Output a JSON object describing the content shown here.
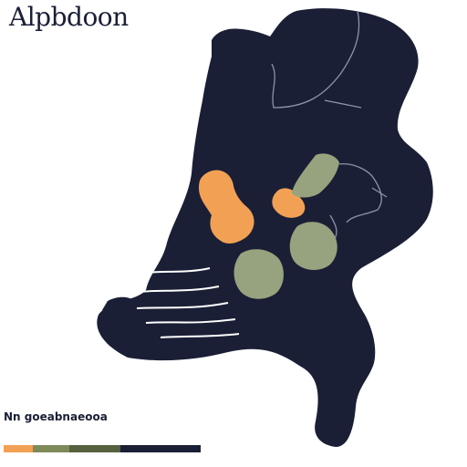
{
  "title": "Alpbdoon",
  "legend": {
    "label": "Nn goeabnaeooa",
    "segments": [
      {
        "color": "#f2a154"
      },
      {
        "color": "#7e8a5a"
      },
      {
        "color": "#56613f"
      },
      {
        "color": "#1a1f36"
      }
    ]
  },
  "colors": {
    "land": "#1a1f36",
    "orange": "#f2a154",
    "green": "#96a37e",
    "border": "#8d93a8",
    "background": "#ffffff"
  }
}
